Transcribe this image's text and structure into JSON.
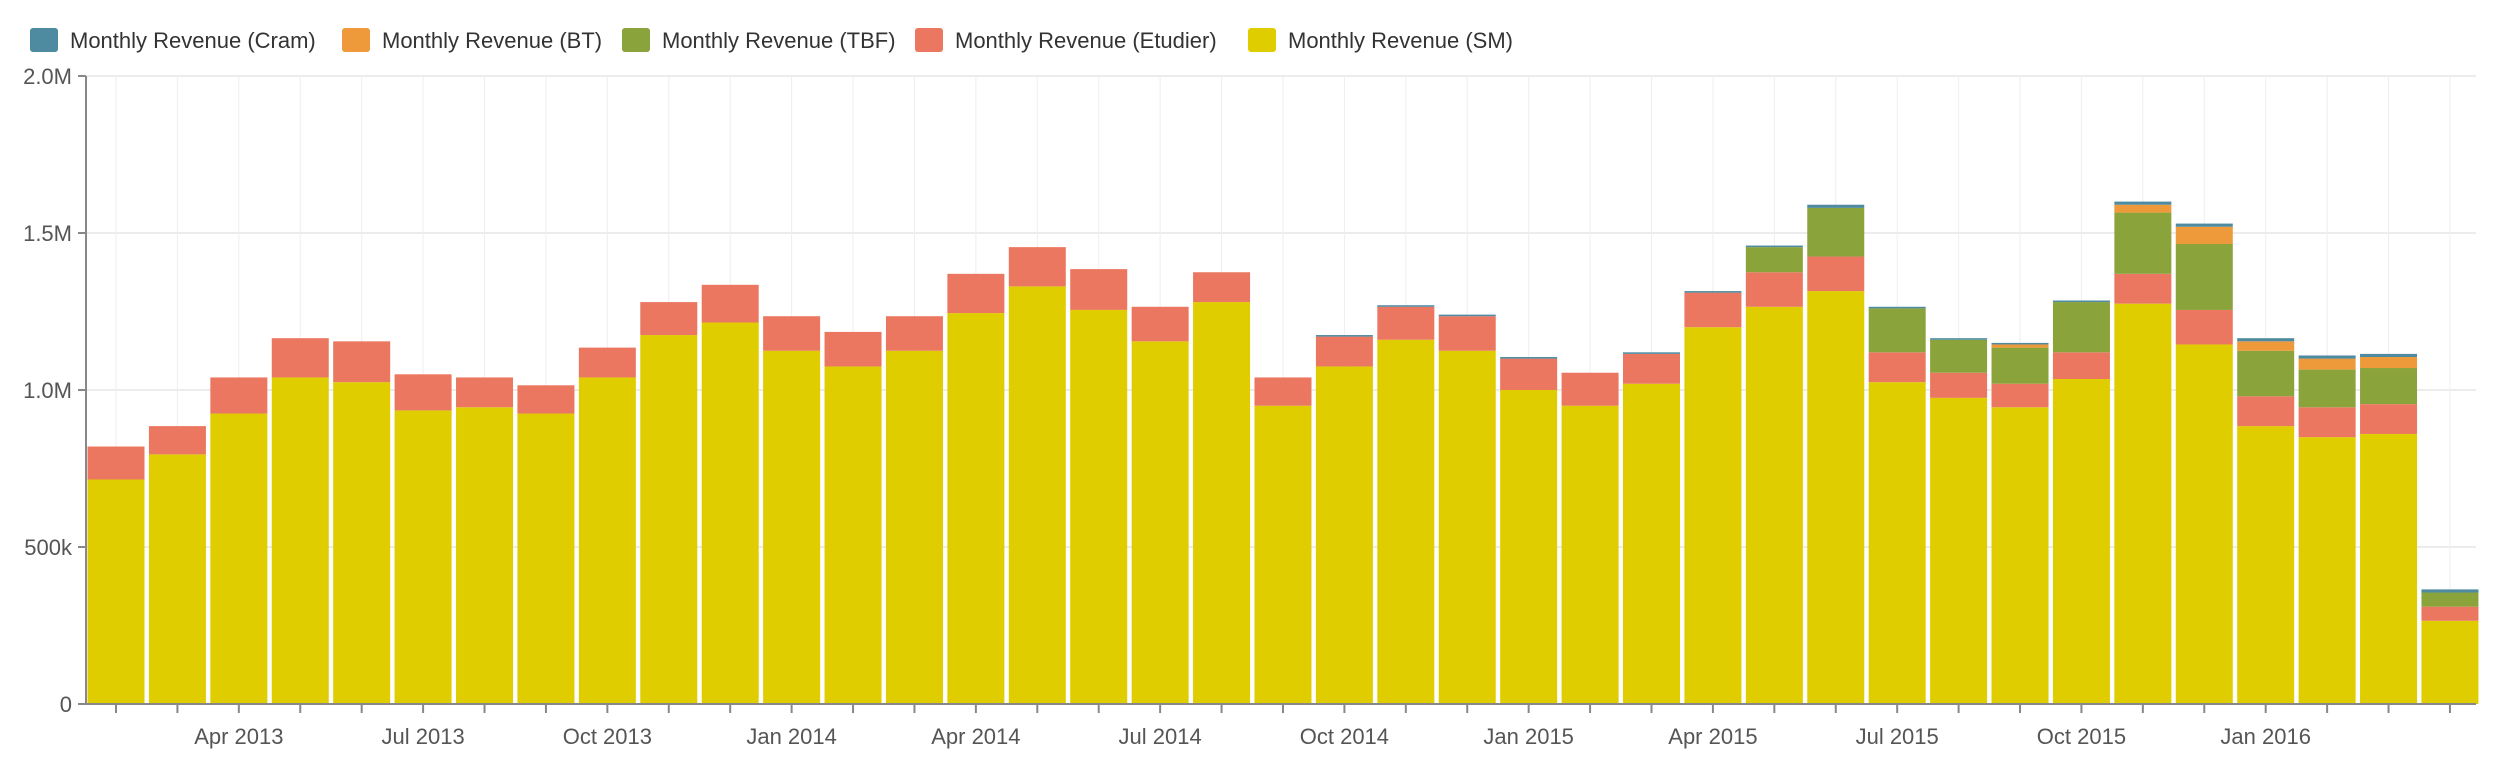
{
  "chart_data": {
    "type": "bar",
    "stacked": true,
    "title": "",
    "xlabel": "",
    "ylabel": "",
    "ylim": [
      0,
      2000000
    ],
    "grid": true,
    "legend_position": "top-left",
    "y_ticks": [
      {
        "value": 0,
        "label": "0"
      },
      {
        "value": 500000,
        "label": "500k"
      },
      {
        "value": 1000000,
        "label": "1.0M"
      },
      {
        "value": 1500000,
        "label": "1.5M"
      },
      {
        "value": 2000000,
        "label": "2.0M"
      }
    ],
    "x_tick_labels": [
      {
        "index": 2,
        "label": "Apr 2013"
      },
      {
        "index": 5,
        "label": "Jul 2013"
      },
      {
        "index": 8,
        "label": "Oct 2013"
      },
      {
        "index": 11,
        "label": "Jan 2014"
      },
      {
        "index": 14,
        "label": "Apr 2014"
      },
      {
        "index": 17,
        "label": "Jul 2014"
      },
      {
        "index": 20,
        "label": "Oct 2014"
      },
      {
        "index": 23,
        "label": "Jan 2015"
      },
      {
        "index": 26,
        "label": "Apr 2015"
      },
      {
        "index": 29,
        "label": "Jul 2015"
      },
      {
        "index": 32,
        "label": "Oct 2015"
      },
      {
        "index": 35,
        "label": "Jan 2016"
      }
    ],
    "categories": [
      "2013-01",
      "2013-02",
      "2013-03",
      "2013-04",
      "2013-05",
      "2013-06",
      "2013-07",
      "2013-08",
      "2013-09",
      "2013-10",
      "2013-11",
      "2013-12",
      "2014-01",
      "2014-02",
      "2014-03",
      "2014-04",
      "2014-05",
      "2014-06",
      "2014-07",
      "2014-08",
      "2014-09",
      "2014-10",
      "2014-11",
      "2014-12",
      "2015-01",
      "2015-02",
      "2015-03",
      "2015-04",
      "2015-05",
      "2015-06",
      "2015-07",
      "2015-08",
      "2015-09",
      "2015-10",
      "2015-11",
      "2015-12",
      "2016-01",
      "2016-02",
      "2016-03"
    ],
    "series": [
      {
        "name": "Monthly Revenue (SM)",
        "color": "#dfcd00",
        "values": [
          715000,
          795000,
          925000,
          1040000,
          1025000,
          935000,
          945000,
          925000,
          1040000,
          1175000,
          1215000,
          1125000,
          1075000,
          1125000,
          1245000,
          1330000,
          1255000,
          1155000,
          1280000,
          950000,
          1075000,
          1160000,
          1125000,
          1000000,
          950000,
          1020000,
          1200000,
          1265000,
          1315000,
          1025000,
          975000,
          945000,
          1035000,
          1275000,
          1145000,
          885000,
          850000,
          860000,
          265000
        ]
      },
      {
        "name": "Monthly Revenue (Etudier)",
        "color": "#eb7761",
        "values": [
          105000,
          90000,
          115000,
          125000,
          130000,
          115000,
          95000,
          90000,
          95000,
          105000,
          120000,
          110000,
          110000,
          110000,
          125000,
          125000,
          130000,
          110000,
          95000,
          90000,
          95000,
          105000,
          110000,
          100000,
          105000,
          95000,
          110000,
          110000,
          110000,
          95000,
          80000,
          75000,
          85000,
          95000,
          110000,
          95000,
          95000,
          95000,
          45000
        ]
      },
      {
        "name": "Monthly Revenue (TBF)",
        "color": "#8ba33b",
        "values": [
          0,
          0,
          0,
          0,
          0,
          0,
          0,
          0,
          0,
          0,
          0,
          0,
          0,
          0,
          0,
          0,
          0,
          0,
          0,
          0,
          0,
          0,
          0,
          0,
          0,
          0,
          0,
          80000,
          155000,
          140000,
          105000,
          115000,
          160000,
          195000,
          210000,
          145000,
          120000,
          115000,
          45000
        ]
      },
      {
        "name": "Monthly Revenue (BT)",
        "color": "#ee9a3a",
        "values": [
          0,
          0,
          0,
          0,
          0,
          0,
          0,
          0,
          0,
          0,
          0,
          0,
          0,
          0,
          0,
          0,
          0,
          0,
          0,
          0,
          0,
          0,
          0,
          0,
          0,
          0,
          0,
          0,
          0,
          0,
          0,
          10000,
          0,
          25000,
          55000,
          30000,
          35000,
          35000,
          0
        ]
      },
      {
        "name": "Monthly Revenue (Cram)",
        "color": "#4e8aa0",
        "values": [
          0,
          0,
          0,
          0,
          0,
          0,
          0,
          0,
          0,
          0,
          0,
          0,
          0,
          0,
          0,
          0,
          0,
          0,
          0,
          0,
          5000,
          5000,
          5000,
          5000,
          0,
          5000,
          5000,
          5000,
          10000,
          5000,
          5000,
          5000,
          5000,
          10000,
          10000,
          10000,
          10000,
          10000,
          10000
        ]
      }
    ],
    "legend_order": [
      4,
      3,
      2,
      1,
      0
    ]
  }
}
